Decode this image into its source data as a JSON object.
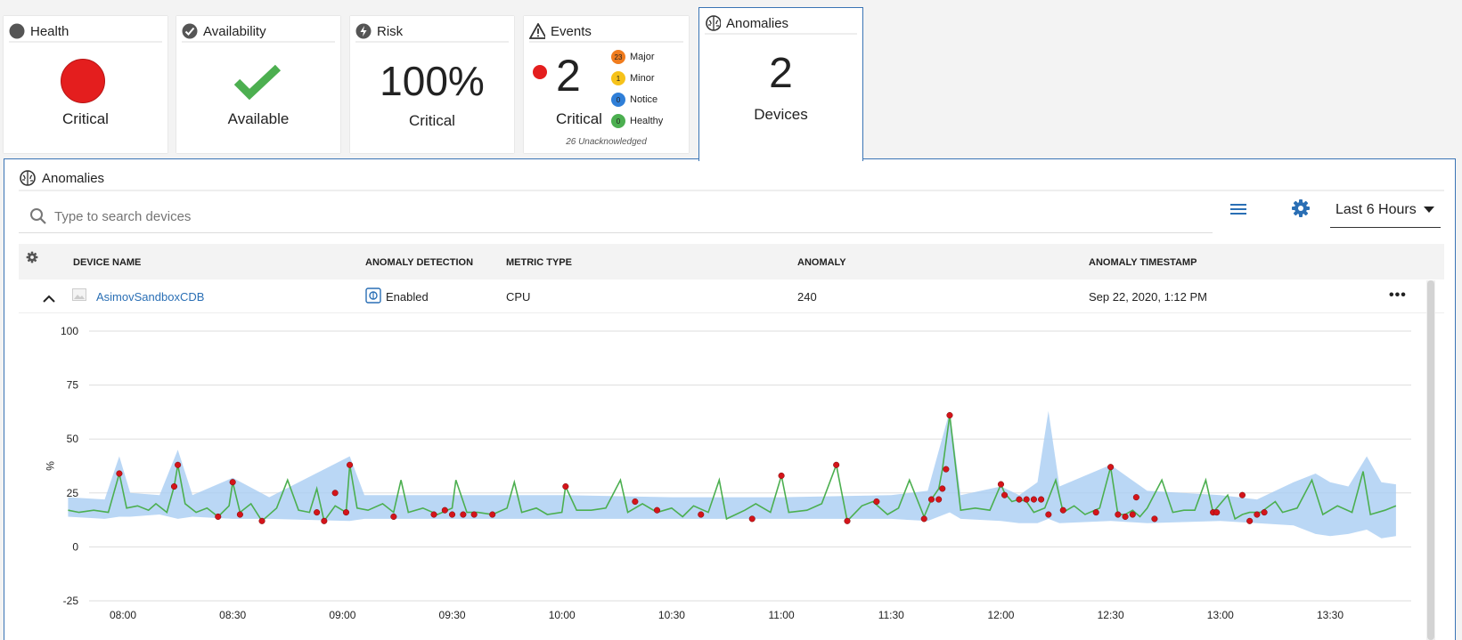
{
  "cards": {
    "health": {
      "title": "Health",
      "status": "Critical"
    },
    "availability": {
      "title": "Availability",
      "status": "Available"
    },
    "risk": {
      "title": "Risk",
      "value": "100%",
      "status": "Critical"
    },
    "events": {
      "title": "Events",
      "count": "2",
      "status": "Critical",
      "breakdown": [
        {
          "count": "23",
          "label": "Major",
          "color": "#f07c1e"
        },
        {
          "count": "1",
          "label": "Minor",
          "color": "#f6c21a"
        },
        {
          "count": "0",
          "label": "Notice",
          "color": "#2f7fd8"
        },
        {
          "count": "0",
          "label": "Healthy",
          "color": "#4caf50"
        }
      ],
      "unacknowledged": "26 Unacknowledged"
    },
    "anomalies": {
      "title": "Anomalies",
      "count": "2",
      "label": "Devices"
    }
  },
  "panel": {
    "title": "Anomalies",
    "search_placeholder": "Type to search devices",
    "time_range": "Last 6 Hours",
    "columns": [
      "DEVICE NAME",
      "ANOMALY DETECTION",
      "METRIC TYPE",
      "ANOMALY",
      "ANOMALY TIMESTAMP"
    ],
    "rows": [
      {
        "device": "AsimovSandboxCDB",
        "detection": "Enabled",
        "metric": "CPU",
        "anomaly": "240",
        "timestamp": "Sep 22, 2020, 1:12 PM"
      }
    ]
  },
  "colors": {
    "critical": "#e41e1e",
    "available": "#4caf50",
    "accent": "#2a6fb5",
    "line": "#4caf50",
    "band": "#a9cdf3",
    "anomaly_dot": "#d4141a"
  },
  "chart_data": {
    "type": "line",
    "ylabel": "%",
    "ylim": [
      -25,
      100
    ],
    "yticks": [
      100,
      75,
      50,
      25,
      0,
      -25
    ],
    "xticks": [
      "08:00",
      "08:30",
      "09:00",
      "09:30",
      "10:00",
      "10:30",
      "11:00",
      "11:30",
      "12:00",
      "12:30",
      "13:00",
      "13:30"
    ],
    "x_range": [
      "07:45",
      "13:50"
    ],
    "grid": true,
    "series": [
      {
        "color": "#4caf50",
        "points": [
          [
            "07:45",
            17
          ],
          [
            "07:48",
            16
          ],
          [
            "07:52",
            17
          ],
          [
            "07:56",
            16
          ],
          [
            "07:59",
            34
          ],
          [
            "08:01",
            18
          ],
          [
            "08:04",
            19
          ],
          [
            "08:07",
            17
          ],
          [
            "08:09",
            20
          ],
          [
            "08:12",
            16
          ],
          [
            "08:14",
            28
          ],
          [
            "08:15",
            38
          ],
          [
            "08:17",
            20
          ],
          [
            "08:20",
            16
          ],
          [
            "08:23",
            18
          ],
          [
            "08:26",
            14
          ],
          [
            "08:29",
            19
          ],
          [
            "08:30",
            30
          ],
          [
            "08:32",
            16
          ],
          [
            "08:35",
            20
          ],
          [
            "08:38",
            12
          ],
          [
            "08:42",
            18
          ],
          [
            "08:45",
            31
          ],
          [
            "08:48",
            17
          ],
          [
            "08:51",
            16
          ],
          [
            "08:53",
            27
          ],
          [
            "08:55",
            12
          ],
          [
            "08:58",
            19
          ],
          [
            "09:01",
            16
          ],
          [
            "09:02",
            38
          ],
          [
            "09:04",
            18
          ],
          [
            "09:07",
            17
          ],
          [
            "09:11",
            20
          ],
          [
            "09:14",
            16
          ],
          [
            "09:16",
            31
          ],
          [
            "09:18",
            16
          ],
          [
            "09:22",
            18
          ],
          [
            "09:26",
            15
          ],
          [
            "09:30",
            18
          ],
          [
            "09:31",
            31
          ],
          [
            "09:34",
            16
          ],
          [
            "09:37",
            16
          ],
          [
            "09:41",
            15
          ],
          [
            "09:45",
            18
          ],
          [
            "09:47",
            30
          ],
          [
            "09:49",
            16
          ],
          [
            "09:53",
            18
          ],
          [
            "09:56",
            15
          ],
          [
            "10:00",
            16
          ],
          [
            "10:01",
            28
          ],
          [
            "10:04",
            17
          ],
          [
            "10:08",
            17
          ],
          [
            "10:12",
            18
          ],
          [
            "10:16",
            31
          ],
          [
            "10:18",
            16
          ],
          [
            "10:22",
            20
          ],
          [
            "10:26",
            16
          ],
          [
            "10:30",
            18
          ],
          [
            "10:33",
            14
          ],
          [
            "10:36",
            19
          ],
          [
            "10:40",
            16
          ],
          [
            "10:43",
            31
          ],
          [
            "10:45",
            13
          ],
          [
            "10:50",
            17
          ],
          [
            "10:53",
            20
          ],
          [
            "10:57",
            16
          ],
          [
            "11:00",
            33
          ],
          [
            "11:02",
            16
          ],
          [
            "11:07",
            17
          ],
          [
            "11:11",
            20
          ],
          [
            "11:15",
            38
          ],
          [
            "11:18",
            12
          ],
          [
            "11:22",
            19
          ],
          [
            "11:25",
            21
          ],
          [
            "11:29",
            15
          ],
          [
            "11:32",
            18
          ],
          [
            "11:35",
            31
          ],
          [
            "11:39",
            14
          ],
          [
            "11:41",
            22
          ],
          [
            "11:43",
            27
          ],
          [
            "11:44",
            36
          ],
          [
            "11:46",
            61
          ],
          [
            "11:49",
            17
          ],
          [
            "11:53",
            18
          ],
          [
            "11:57",
            17
          ],
          [
            "12:00",
            29
          ],
          [
            "12:01",
            25
          ],
          [
            "12:03",
            21
          ],
          [
            "12:05",
            22
          ],
          [
            "12:07",
            21
          ],
          [
            "12:09",
            16
          ],
          [
            "12:12",
            18
          ],
          [
            "12:15",
            31
          ],
          [
            "12:17",
            16
          ],
          [
            "12:20",
            19
          ],
          [
            "12:23",
            15
          ],
          [
            "12:27",
            18
          ],
          [
            "12:30",
            37
          ],
          [
            "12:32",
            15
          ],
          [
            "12:34",
            15
          ],
          [
            "12:36",
            17
          ],
          [
            "12:38",
            14
          ],
          [
            "12:40",
            18
          ],
          [
            "12:44",
            31
          ],
          [
            "12:47",
            16
          ],
          [
            "12:50",
            17
          ],
          [
            "12:53",
            17
          ],
          [
            "12:56",
            31
          ],
          [
            "12:58",
            16
          ],
          [
            "13:02",
            24
          ],
          [
            "13:04",
            13
          ],
          [
            "13:06",
            15
          ],
          [
            "13:08",
            16
          ],
          [
            "13:11",
            16
          ],
          [
            "13:15",
            21
          ],
          [
            "13:17",
            16
          ],
          [
            "13:21",
            18
          ],
          [
            "13:25",
            31
          ],
          [
            "13:28",
            15
          ],
          [
            "13:32",
            19
          ],
          [
            "13:36",
            16
          ],
          [
            "13:39",
            35
          ],
          [
            "13:41",
            15
          ],
          [
            "13:45",
            17
          ],
          [
            "13:48",
            19
          ]
        ]
      }
    ],
    "band": [
      [
        "07:45",
        14,
        23
      ],
      [
        "07:55",
        13,
        22
      ],
      [
        "07:59",
        14,
        42
      ],
      [
        "08:02",
        14,
        25
      ],
      [
        "08:10",
        15,
        24
      ],
      [
        "08:15",
        13,
        45
      ],
      [
        "08:19",
        14,
        24
      ],
      [
        "08:30",
        13,
        32
      ],
      [
        "08:40",
        13,
        23
      ],
      [
        "09:02",
        12,
        42
      ],
      [
        "09:06",
        13,
        24
      ],
      [
        "09:30",
        13,
        24
      ],
      [
        "10:00",
        13,
        24
      ],
      [
        "10:30",
        13,
        23
      ],
      [
        "11:00",
        13,
        23
      ],
      [
        "11:30",
        13,
        24
      ],
      [
        "11:40",
        12,
        26
      ],
      [
        "11:46",
        16,
        63
      ],
      [
        "11:49",
        13,
        24
      ],
      [
        "12:00",
        12,
        28
      ],
      [
        "12:05",
        11,
        24
      ],
      [
        "12:10",
        11,
        30
      ],
      [
        "12:13",
        13,
        63
      ],
      [
        "12:16",
        11,
        28
      ],
      [
        "12:30",
        12,
        38
      ],
      [
        "12:40",
        11,
        26
      ],
      [
        "13:00",
        12,
        24
      ],
      [
        "13:10",
        11,
        22
      ],
      [
        "13:20",
        10,
        30
      ],
      [
        "13:26",
        6,
        34
      ],
      [
        "13:30",
        5,
        30
      ],
      [
        "13:35",
        6,
        28
      ],
      [
        "13:40",
        8,
        42
      ],
      [
        "13:44",
        4,
        30
      ],
      [
        "13:48",
        5,
        29
      ]
    ],
    "anomalies": [
      [
        "07:59",
        34
      ],
      [
        "08:14",
        28
      ],
      [
        "08:15",
        38
      ],
      [
        "08:26",
        14
      ],
      [
        "08:30",
        30
      ],
      [
        "08:32",
        15
      ],
      [
        "08:38",
        12
      ],
      [
        "08:53",
        16
      ],
      [
        "08:55",
        12
      ],
      [
        "08:58",
        25
      ],
      [
        "09:01",
        16
      ],
      [
        "09:02",
        38
      ],
      [
        "09:14",
        14
      ],
      [
        "09:25",
        15
      ],
      [
        "09:28",
        17
      ],
      [
        "09:30",
        15
      ],
      [
        "09:33",
        15
      ],
      [
        "09:36",
        15
      ],
      [
        "09:41",
        15
      ],
      [
        "10:01",
        28
      ],
      [
        "10:26",
        17
      ],
      [
        "10:20",
        21
      ],
      [
        "10:38",
        15
      ],
      [
        "10:52",
        13
      ],
      [
        "11:00",
        33
      ],
      [
        "11:15",
        38
      ],
      [
        "11:18",
        12
      ],
      [
        "11:26",
        21
      ],
      [
        "11:39",
        13
      ],
      [
        "11:41",
        22
      ],
      [
        "11:43",
        22
      ],
      [
        "11:44",
        27
      ],
      [
        "11:45",
        36
      ],
      [
        "11:46",
        61
      ],
      [
        "12:00",
        29
      ],
      [
        "12:01",
        24
      ],
      [
        "12:05",
        22
      ],
      [
        "12:07",
        22
      ],
      [
        "12:09",
        22
      ],
      [
        "12:11",
        22
      ],
      [
        "12:13",
        15
      ],
      [
        "12:17",
        17
      ],
      [
        "12:26",
        16
      ],
      [
        "12:30",
        37
      ],
      [
        "12:32",
        15
      ],
      [
        "12:34",
        14
      ],
      [
        "12:36",
        15
      ],
      [
        "12:37",
        23
      ],
      [
        "12:42",
        13
      ],
      [
        "12:58",
        16
      ],
      [
        "12:59",
        16
      ],
      [
        "13:06",
        24
      ],
      [
        "13:08",
        12
      ],
      [
        "13:10",
        15
      ],
      [
        "13:12",
        16
      ]
    ]
  }
}
